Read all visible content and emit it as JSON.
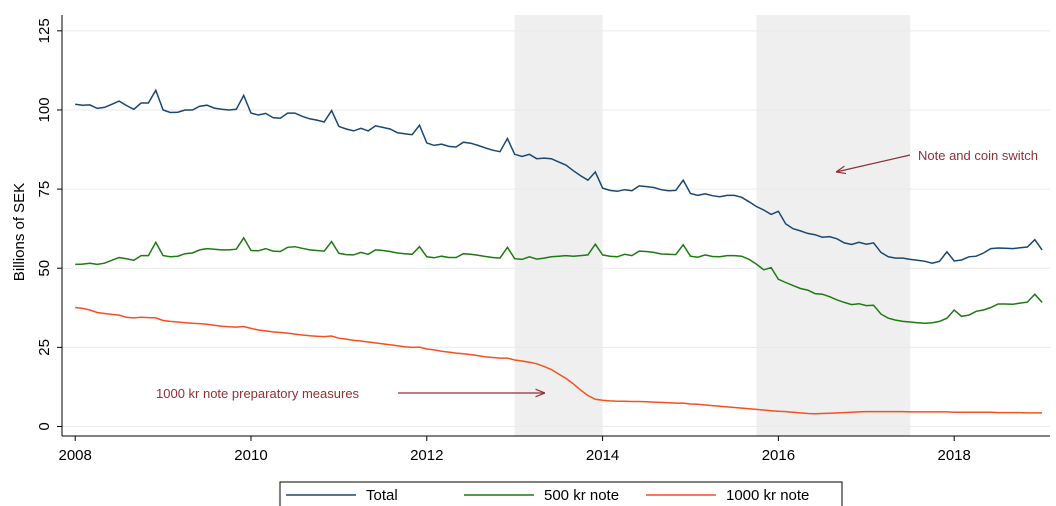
{
  "chart_data": {
    "type": "line",
    "y_label": "Billions of SEK",
    "xlim": [
      2007.85,
      2019.09
    ],
    "xticks": [
      2008,
      2010,
      2012,
      2014,
      2016,
      2018
    ],
    "ylim": [
      -3,
      130
    ],
    "yticks": [
      0,
      25,
      50,
      75,
      100,
      125
    ],
    "grid": true,
    "legend": "bottom",
    "shaded_regions": [
      [
        2013,
        2014
      ],
      [
        2015.75,
        2017.5
      ]
    ],
    "annotations": [
      "Note and coin switch",
      "1000 kr note preparatory measures"
    ],
    "x": [
      2008,
      2008.083,
      2008.167,
      2008.25,
      2008.333,
      2008.417,
      2008.5,
      2008.583,
      2008.667,
      2008.75,
      2008.833,
      2008.917,
      2009,
      2009.083,
      2009.167,
      2009.25,
      2009.333,
      2009.417,
      2009.5,
      2009.583,
      2009.667,
      2009.75,
      2009.833,
      2009.917,
      2010,
      2010.083,
      2010.167,
      2010.25,
      2010.333,
      2010.417,
      2010.5,
      2010.583,
      2010.667,
      2010.75,
      2010.833,
      2010.917,
      2011,
      2011.083,
      2011.167,
      2011.25,
      2011.333,
      2011.417,
      2011.5,
      2011.583,
      2011.667,
      2011.75,
      2011.833,
      2011.917,
      2012,
      2012.083,
      2012.167,
      2012.25,
      2012.333,
      2012.417,
      2012.5,
      2012.583,
      2012.667,
      2012.75,
      2012.833,
      2012.917,
      2013,
      2013.083,
      2013.167,
      2013.25,
      2013.333,
      2013.417,
      2013.5,
      2013.583,
      2013.667,
      2013.75,
      2013.833,
      2013.917,
      2014,
      2014.083,
      2014.167,
      2014.25,
      2014.333,
      2014.417,
      2014.5,
      2014.583,
      2014.667,
      2014.75,
      2014.833,
      2014.917,
      2015,
      2015.083,
      2015.167,
      2015.25,
      2015.333,
      2015.417,
      2015.5,
      2015.583,
      2015.667,
      2015.75,
      2015.833,
      2015.917,
      2016,
      2016.083,
      2016.167,
      2016.25,
      2016.333,
      2016.417,
      2016.5,
      2016.583,
      2016.667,
      2016.75,
      2016.833,
      2016.917,
      2017,
      2017.083,
      2017.167,
      2017.25,
      2017.333,
      2017.417,
      2017.5,
      2017.583,
      2017.667,
      2017.75,
      2017.833,
      2017.917,
      2018,
      2018.083,
      2018.167,
      2018.25,
      2018.333,
      2018.417,
      2018.5,
      2018.583,
      2018.667,
      2018.75,
      2018.833,
      2018.917,
      2019
    ],
    "series": [
      {
        "name": "Total",
        "color": "#1a476f",
        "values": [
          101.8,
          101.5,
          101.6,
          100.5,
          100.8,
          101.8,
          102.8,
          101.4,
          100.2,
          102.2,
          102.2,
          106.2,
          100,
          99.2,
          99.3,
          100,
          100,
          101.2,
          101.5,
          100.6,
          100.2,
          100,
          100.2,
          104.6,
          99,
          98.4,
          98.9,
          97.6,
          97.4,
          99,
          99,
          98,
          97.2,
          96.8,
          96.2,
          99.8,
          94.8,
          94,
          93.4,
          94.2,
          93.4,
          95,
          94.5,
          94,
          92.8,
          92.5,
          92.2,
          95.2,
          89.6,
          88.8,
          89.2,
          88.5,
          88.3,
          89.8,
          89.5,
          88.8,
          88,
          87.3,
          86.8,
          91,
          86,
          85.3,
          86,
          84.6,
          84.8,
          84.6,
          83.6,
          82.6,
          80.8,
          79.2,
          77.8,
          80.4,
          75.3,
          74.6,
          74.3,
          74.8,
          74.5,
          76,
          75.8,
          75.5,
          74.8,
          74.5,
          74.6,
          77.8,
          73.6,
          73,
          73.5,
          72.9,
          72.6,
          73,
          73,
          72.4,
          71,
          69.5,
          68.4,
          67,
          68,
          64,
          62.5,
          61.8,
          61,
          60.6,
          59.8,
          60,
          59.3,
          58,
          57.5,
          58.2,
          57.6,
          58,
          55,
          53.6,
          53.2,
          53.2,
          52.8,
          52.5,
          52.2,
          51.6,
          52.2,
          55.2,
          52.3,
          52.6,
          53.6,
          53.8,
          54.8,
          56.2,
          56.4,
          56.3,
          56.2,
          56.5,
          56.7,
          59,
          55.8
        ]
      },
      {
        "name": "500 kr note",
        "color": "#1e7a12",
        "values": [
          51.2,
          51.3,
          51.6,
          51.2,
          51.6,
          52.5,
          53.4,
          53,
          52.5,
          54,
          54,
          58.2,
          54,
          53.6,
          53.8,
          54.6,
          54.8,
          55.8,
          56.2,
          56,
          55.8,
          55.8,
          56,
          59.6,
          55.6,
          55.5,
          56.2,
          55.4,
          55.3,
          56.6,
          56.8,
          56.3,
          55.8,
          55.6,
          55.4,
          58.4,
          54.7,
          54.3,
          54.2,
          55,
          54.4,
          55.8,
          55.6,
          55.3,
          54.8,
          54.6,
          54.4,
          56.8,
          53.6,
          53.3,
          53.8,
          53.4,
          53.4,
          54.6,
          54.4,
          54.1,
          53.7,
          53.4,
          53.2,
          56.6,
          53,
          52.8,
          53.6,
          52.9,
          53.2,
          53.6,
          53.8,
          54,
          53.8,
          54,
          54.2,
          57.6,
          54.2,
          53.8,
          53.6,
          54.4,
          54,
          55.4,
          55.3,
          55,
          54.5,
          54.4,
          54.3,
          57.4,
          53.8,
          53.5,
          54.2,
          53.7,
          53.6,
          54,
          54,
          53.8,
          52.8,
          51.3,
          49.5,
          50.2,
          46.5,
          45.5,
          44.5,
          43.6,
          43.1,
          42,
          41.8,
          41,
          40,
          39.2,
          38.5,
          38.8,
          38.2,
          38.3,
          35.5,
          34.2,
          33.6,
          33.2,
          33,
          32.8,
          32.6,
          32.8,
          33.2,
          34.2,
          36.8,
          34.8,
          35.2,
          36.4,
          36.8,
          37.6,
          38.7,
          38.7,
          38.6,
          39,
          39.3,
          41.8,
          39.2
        ]
      },
      {
        "name": "1000 kr note",
        "color": "#f4511e",
        "values": [
          37.6,
          37.3,
          36.8,
          36,
          35.7,
          35.4,
          35.2,
          34.5,
          34.3,
          34.5,
          34.4,
          34.3,
          33.5,
          33.2,
          33,
          32.8,
          32.6,
          32.5,
          32.3,
          32,
          31.7,
          31.5,
          31.4,
          31.6,
          31,
          30.5,
          30.2,
          29.9,
          29.7,
          29.5,
          29.2,
          28.9,
          28.7,
          28.5,
          28.4,
          28.6,
          27.9,
          27.6,
          27.2,
          27,
          26.7,
          26.4,
          26.1,
          25.8,
          25.5,
          25.2,
          25,
          25.1,
          24.5,
          24.2,
          23.8,
          23.5,
          23.2,
          23,
          22.7,
          22.4,
          22,
          21.8,
          21.6,
          21.6,
          21,
          20.7,
          20.3,
          19.8,
          19,
          18,
          16.6,
          15.2,
          13.5,
          11.5,
          9.8,
          8.6,
          8.3,
          8.1,
          8,
          8,
          7.9,
          7.9,
          7.8,
          7.7,
          7.6,
          7.5,
          7.4,
          7.4,
          7.1,
          7,
          6.8,
          6.6,
          6.4,
          6.2,
          6,
          5.8,
          5.6,
          5.4,
          5.2,
          5,
          4.8,
          4.7,
          4.5,
          4.3,
          4.1,
          4,
          4.1,
          4.2,
          4.3,
          4.4,
          4.5,
          4.6,
          4.7,
          4.7,
          4.7,
          4.7,
          4.7,
          4.7,
          4.6,
          4.6,
          4.6,
          4.6,
          4.6,
          4.6,
          4.5,
          4.5,
          4.5,
          4.5,
          4.5,
          4.5,
          4.4,
          4.4,
          4.4,
          4.4,
          4.3,
          4.3,
          4.3
        ]
      }
    ]
  }
}
